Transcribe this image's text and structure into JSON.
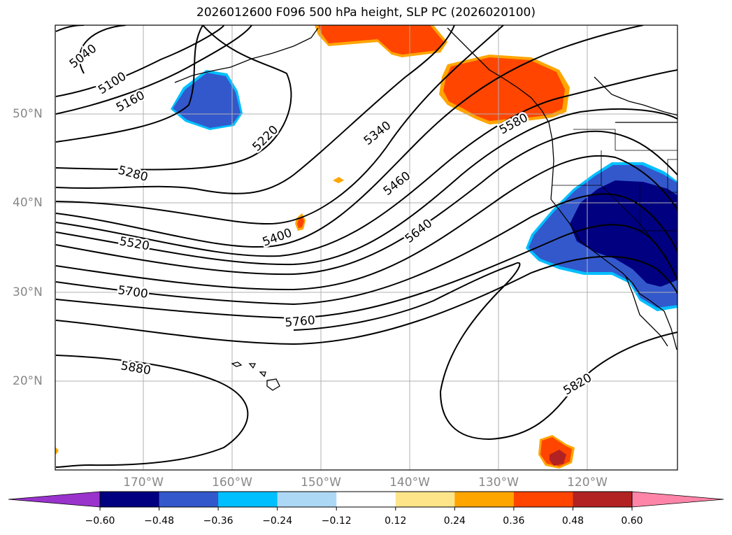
{
  "title": "2026012600 F096 500 hPa height, SLP PC (2026020100)",
  "axes": {
    "lat_labels": [
      "50°N",
      "40°N",
      "30°N",
      "20°N"
    ],
    "lon_labels": [
      "170°W",
      "160°W",
      "150°W",
      "140°W",
      "130°W",
      "120°W"
    ]
  },
  "contour_labels": [
    "5040",
    "5100",
    "5160",
    "5220",
    "5280",
    "5340",
    "5400",
    "5460",
    "5520",
    "5580",
    "5640",
    "5700",
    "5760",
    "5820",
    "5880"
  ],
  "colorbar": {
    "ticks": [
      "−0.60",
      "−0.48",
      "−0.36",
      "−0.24",
      "−0.12",
      "0.12",
      "0.24",
      "0.36",
      "0.48",
      "0.60"
    ],
    "colors": [
      "#9933cc",
      "#000080",
      "#3358cc",
      "#00bfff",
      "#add8f5",
      "#ffffff",
      "#ffe58a",
      "#ffa500",
      "#ff4500",
      "#b22222",
      "#ff85a8"
    ]
  }
}
